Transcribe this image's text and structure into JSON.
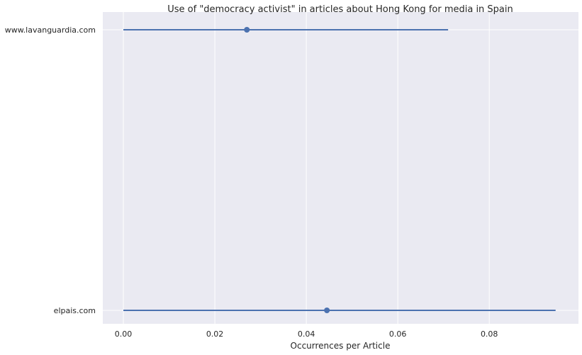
{
  "chart_data": {
    "type": "scatter",
    "title": "Use of \"democracy activist\" in articles about Hong Kong for media in Spain",
    "xlabel": "Occurrences per Article",
    "ylabel": "",
    "xlim": [
      -0.0045,
      0.0995
    ],
    "xticks": [
      0.0,
      0.02,
      0.04,
      0.06,
      0.08
    ],
    "xtick_labels": [
      "0.00",
      "0.02",
      "0.04",
      "0.06",
      "0.08"
    ],
    "categories": [
      "www.lavanguardia.com",
      "elpais.com"
    ],
    "grid": true,
    "series": [
      {
        "values": [
          0.027,
          0.0445
        ],
        "ci_low": [
          0.0,
          0.0
        ],
        "ci_high": [
          0.071,
          0.0945
        ]
      }
    ],
    "colors": {
      "series": "#4c72b0",
      "background": "#eaeaf2",
      "grid": "#ffffff"
    }
  }
}
